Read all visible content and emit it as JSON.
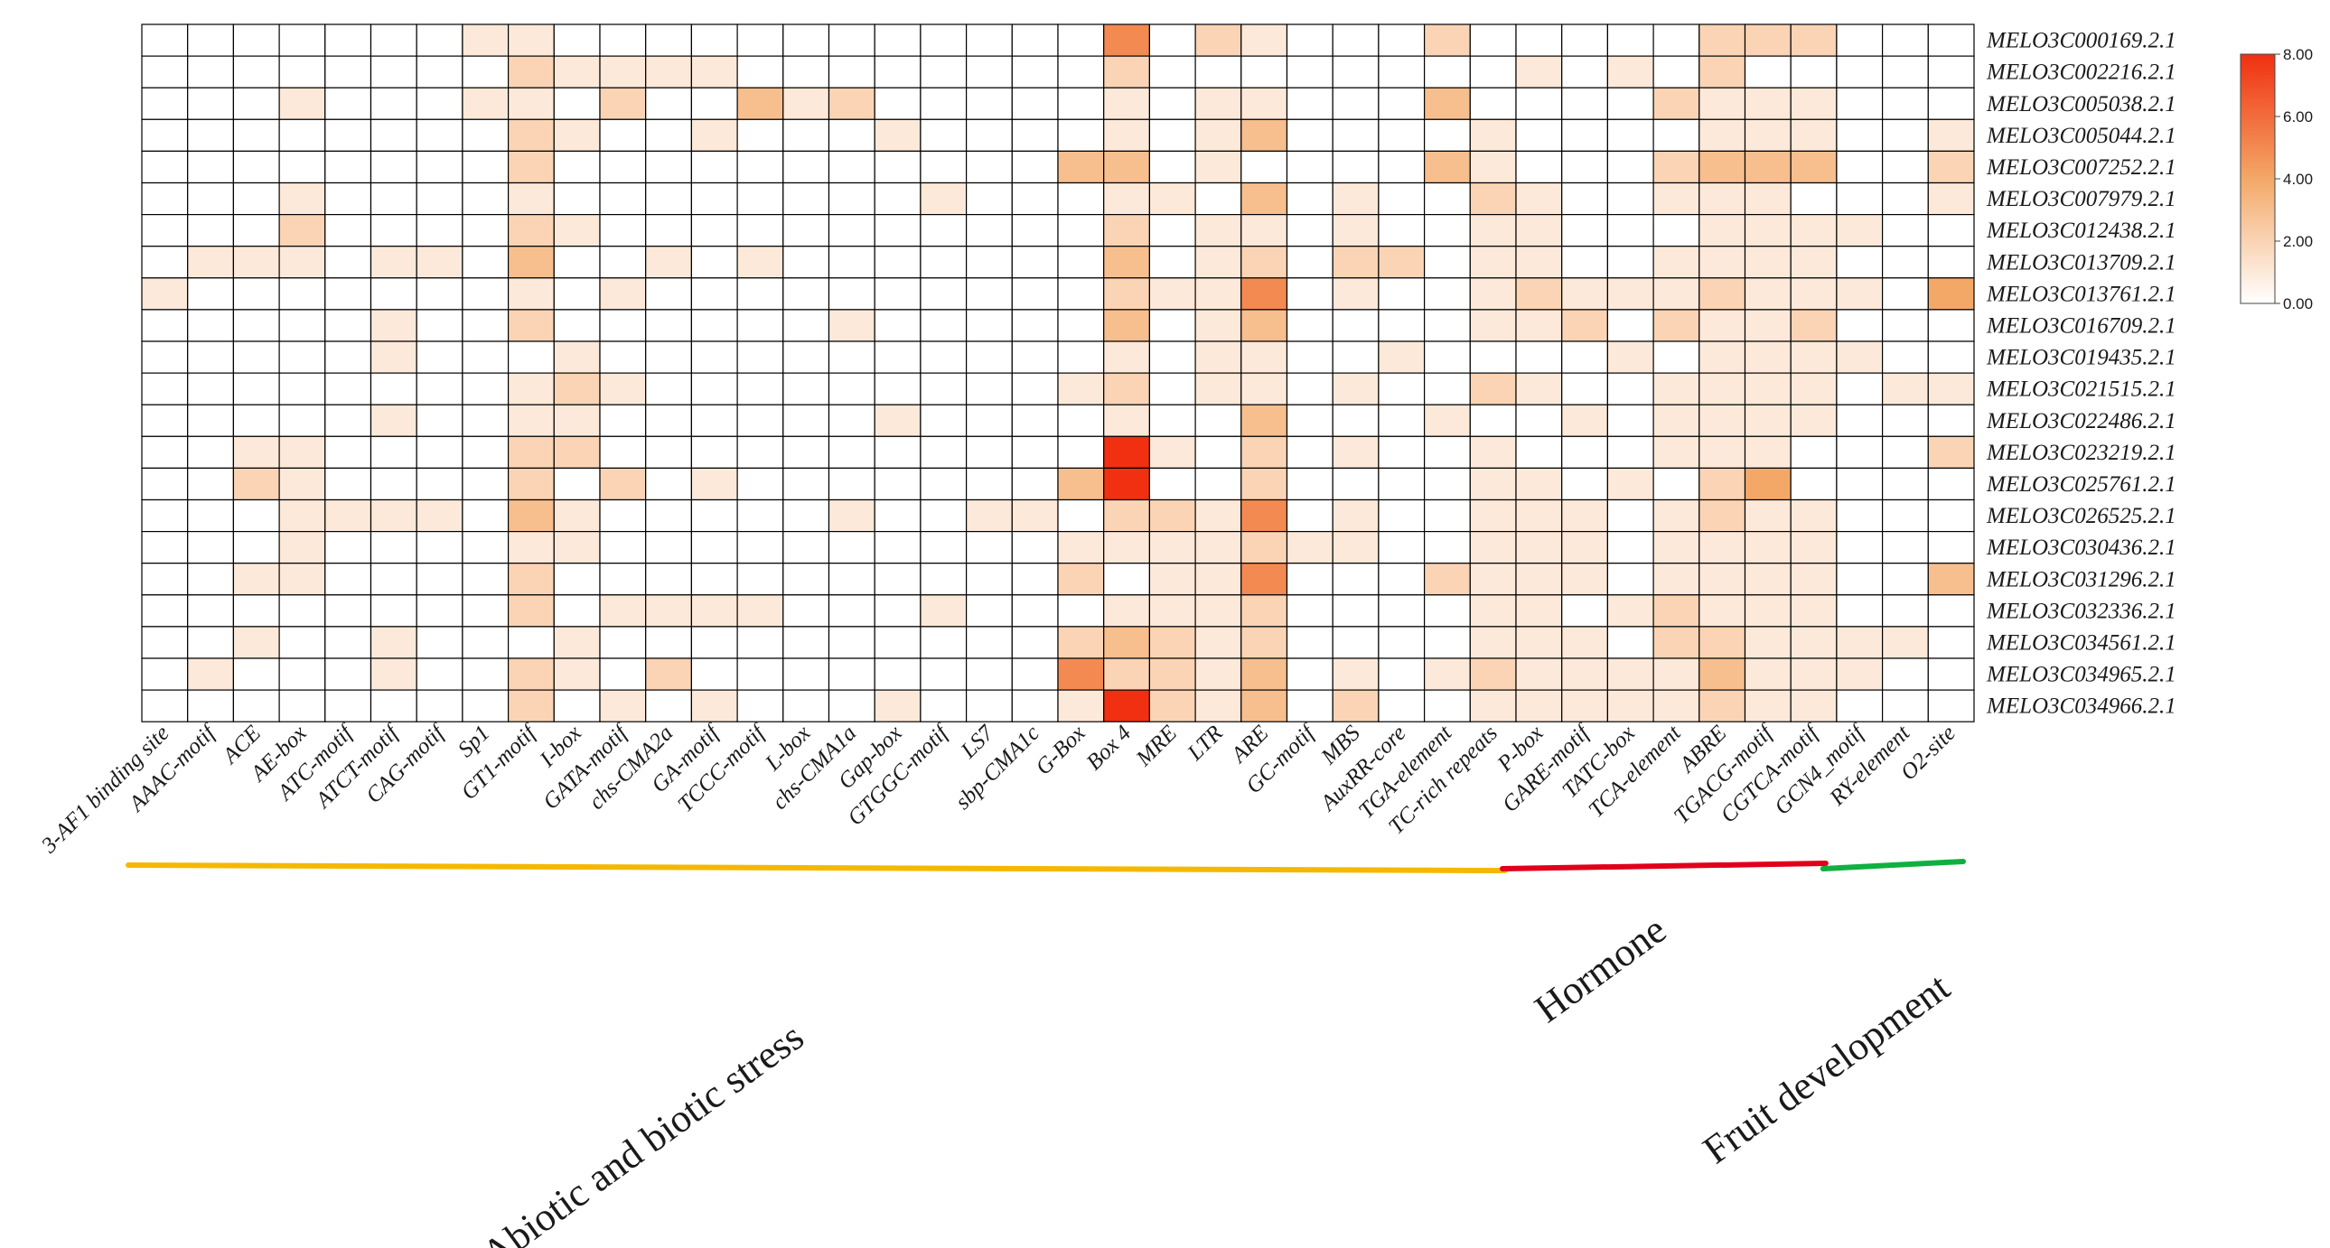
{
  "chart_data": {
    "type": "heatmap",
    "title": "",
    "rows": [
      "MELO3C000169.2.1",
      "MELO3C002216.2.1",
      "MELO3C005038.2.1",
      "MELO3C005044.2.1",
      "MELO3C007252.2.1",
      "MELO3C007979.2.1",
      "MELO3C012438.2.1",
      "MELO3C013709.2.1",
      "MELO3C013761.2.1",
      "MELO3C016709.2.1",
      "MELO3C019435.2.1",
      "MELO3C021515.2.1",
      "MELO3C022486.2.1",
      "MELO3C023219.2.1",
      "MELO3C025761.2.1",
      "MELO3C026525.2.1",
      "MELO3C030436.2.1",
      "MELO3C031296.2.1",
      "MELO3C032336.2.1",
      "MELO3C034561.2.1",
      "MELO3C034965.2.1",
      "MELO3C034966.2.1"
    ],
    "columns": [
      "3-AF1 binding site",
      "AAAC-motif",
      "ACE",
      "AE-box",
      "ATC-motif",
      "ATCT-motif",
      "CAG-motif",
      "Sp1",
      "GT1-motif",
      "I-box",
      "GATA-motif",
      "chs-CMA2a",
      "GA-motif",
      "TCCC-motif",
      "L-box",
      "chs-CMA1a",
      "Gap-box",
      "GTGGC-motif",
      "LS7",
      "sbp-CMA1c",
      "G-Box",
      "Box 4",
      "MRE",
      "LTR",
      "ARE",
      "GC-motif",
      "MBS",
      "AuxRR-core",
      "TGA-element",
      "TC-rich repeats",
      "P-box",
      "GARE-motif",
      "TATC-box",
      "TCA-element",
      "ABRE",
      "TGACG-motif",
      "CGTCA-motif",
      "GCN4_motif",
      "RY-element",
      "O2-site"
    ],
    "values": [
      [
        0,
        0,
        0,
        0,
        0,
        0,
        0,
        1,
        1,
        0,
        0,
        0,
        0,
        0,
        0,
        0,
        0,
        0,
        0,
        0,
        0,
        5,
        0,
        2,
        1,
        0,
        0,
        0,
        2,
        0,
        0,
        0,
        0,
        0,
        2,
        2,
        2,
        0,
        0,
        0
      ],
      [
        0,
        0,
        0,
        0,
        0,
        0,
        0,
        0,
        2,
        1,
        1,
        1,
        1,
        0,
        0,
        0,
        0,
        0,
        0,
        0,
        0,
        2,
        0,
        0,
        0,
        0,
        0,
        0,
        0,
        0,
        1,
        0,
        1,
        0,
        2,
        0,
        0,
        0,
        0,
        0
      ],
      [
        0,
        0,
        0,
        1,
        0,
        0,
        0,
        1,
        1,
        0,
        2,
        0,
        0,
        3,
        1,
        2,
        0,
        0,
        0,
        0,
        0,
        1,
        0,
        1,
        1,
        0,
        0,
        0,
        3,
        0,
        0,
        0,
        0,
        2,
        1,
        1,
        1,
        0,
        0,
        0
      ],
      [
        0,
        0,
        0,
        0,
        0,
        0,
        0,
        0,
        2,
        1,
        0,
        0,
        1,
        0,
        0,
        0,
        1,
        0,
        0,
        0,
        0,
        1,
        0,
        1,
        3,
        0,
        0,
        0,
        0,
        1,
        0,
        0,
        0,
        0,
        1,
        1,
        1,
        0,
        0,
        1
      ],
      [
        0,
        0,
        0,
        0,
        0,
        0,
        0,
        0,
        2,
        0,
        0,
        0,
        0,
        0,
        0,
        0,
        0,
        0,
        0,
        0,
        3,
        3,
        0,
        1,
        0,
        0,
        0,
        0,
        3,
        1,
        0,
        0,
        0,
        2,
        3,
        3,
        3,
        0,
        0,
        2
      ],
      [
        0,
        0,
        0,
        1,
        0,
        0,
        0,
        0,
        1,
        0,
        0,
        0,
        0,
        0,
        0,
        0,
        0,
        1,
        0,
        0,
        0,
        1,
        1,
        0,
        3,
        0,
        1,
        0,
        0,
        2,
        1,
        0,
        0,
        1,
        1,
        1,
        0,
        0,
        0,
        1
      ],
      [
        0,
        0,
        0,
        2,
        0,
        0,
        0,
        0,
        2,
        1,
        0,
        0,
        0,
        0,
        0,
        0,
        0,
        0,
        0,
        0,
        0,
        2,
        0,
        1,
        1,
        0,
        1,
        0,
        0,
        1,
        1,
        0,
        0,
        0,
        1,
        1,
        1,
        1,
        0,
        0
      ],
      [
        0,
        1,
        1,
        1,
        0,
        1,
        1,
        0,
        3,
        0,
        0,
        1,
        0,
        1,
        0,
        0,
        0,
        0,
        0,
        0,
        0,
        3,
        0,
        1,
        2,
        0,
        2,
        2,
        0,
        1,
        1,
        0,
        0,
        1,
        1,
        1,
        1,
        0,
        0,
        0
      ],
      [
        1,
        0,
        0,
        0,
        0,
        0,
        0,
        0,
        1,
        0,
        1,
        0,
        0,
        0,
        0,
        0,
        0,
        0,
        0,
        0,
        0,
        2,
        1,
        1,
        5,
        0,
        1,
        0,
        0,
        1,
        2,
        1,
        1,
        1,
        2,
        1,
        1,
        1,
        0,
        4
      ],
      [
        0,
        0,
        0,
        0,
        0,
        1,
        0,
        0,
        2,
        0,
        0,
        0,
        0,
        0,
        0,
        1,
        0,
        0,
        0,
        0,
        0,
        3,
        0,
        1,
        3,
        0,
        0,
        0,
        0,
        1,
        1,
        2,
        0,
        2,
        1,
        1,
        2,
        0,
        0,
        0
      ],
      [
        0,
        0,
        0,
        0,
        0,
        1,
        0,
        0,
        0,
        1,
        0,
        0,
        0,
        0,
        0,
        0,
        0,
        0,
        0,
        0,
        0,
        1,
        0,
        1,
        1,
        0,
        0,
        1,
        0,
        0,
        0,
        0,
        1,
        0,
        1,
        1,
        1,
        1,
        0,
        0
      ],
      [
        0,
        0,
        0,
        0,
        0,
        0,
        0,
        0,
        1,
        2,
        1,
        0,
        0,
        0,
        0,
        0,
        0,
        0,
        0,
        0,
        1,
        2,
        0,
        1,
        1,
        0,
        1,
        0,
        0,
        2,
        1,
        0,
        0,
        1,
        1,
        1,
        1,
        0,
        1,
        1
      ],
      [
        0,
        0,
        0,
        0,
        0,
        1,
        0,
        0,
        1,
        1,
        0,
        0,
        0,
        0,
        0,
        0,
        1,
        0,
        0,
        0,
        0,
        1,
        0,
        0,
        3,
        0,
        0,
        0,
        1,
        0,
        0,
        1,
        0,
        1,
        1,
        1,
        1,
        0,
        0,
        0
      ],
      [
        0,
        0,
        1,
        1,
        0,
        0,
        0,
        0,
        2,
        2,
        0,
        0,
        0,
        0,
        0,
        0,
        0,
        0,
        0,
        0,
        0,
        8,
        1,
        0,
        2,
        0,
        1,
        0,
        0,
        1,
        0,
        0,
        0,
        1,
        1,
        1,
        0,
        0,
        0,
        2
      ],
      [
        0,
        0,
        2,
        1,
        0,
        0,
        0,
        0,
        2,
        0,
        2,
        0,
        1,
        0,
        0,
        0,
        0,
        0,
        0,
        0,
        3,
        8,
        0,
        0,
        2,
        0,
        0,
        0,
        0,
        1,
        1,
        0,
        1,
        0,
        2,
        4,
        0,
        0,
        0,
        0
      ],
      [
        0,
        0,
        0,
        1,
        1,
        1,
        1,
        0,
        3,
        1,
        0,
        0,
        0,
        0,
        0,
        1,
        0,
        0,
        1,
        1,
        0,
        2,
        2,
        1,
        5,
        0,
        1,
        0,
        0,
        1,
        1,
        1,
        0,
        1,
        2,
        1,
        1,
        0,
        0,
        0
      ],
      [
        0,
        0,
        0,
        1,
        0,
        0,
        0,
        0,
        1,
        1,
        0,
        0,
        0,
        0,
        0,
        0,
        0,
        0,
        0,
        0,
        1,
        1,
        1,
        1,
        2,
        1,
        1,
        0,
        0,
        1,
        1,
        1,
        0,
        1,
        1,
        1,
        1,
        0,
        0,
        0
      ],
      [
        0,
        0,
        1,
        1,
        0,
        0,
        0,
        0,
        2,
        0,
        0,
        0,
        0,
        0,
        0,
        0,
        0,
        0,
        0,
        0,
        2,
        0,
        1,
        1,
        5,
        0,
        0,
        0,
        2,
        1,
        1,
        1,
        0,
        1,
        1,
        1,
        1,
        0,
        0,
        3
      ],
      [
        0,
        0,
        0,
        0,
        0,
        0,
        0,
        0,
        2,
        0,
        1,
        1,
        1,
        1,
        0,
        0,
        0,
        1,
        0,
        0,
        0,
        1,
        1,
        1,
        2,
        0,
        0,
        0,
        0,
        1,
        1,
        0,
        1,
        2,
        1,
        1,
        1,
        0,
        0,
        0
      ],
      [
        0,
        0,
        1,
        0,
        0,
        1,
        0,
        0,
        0,
        1,
        0,
        0,
        0,
        0,
        0,
        0,
        0,
        0,
        0,
        0,
        2,
        3,
        2,
        1,
        2,
        0,
        0,
        0,
        0,
        1,
        1,
        1,
        0,
        2,
        2,
        1,
        1,
        1,
        1,
        0
      ],
      [
        0,
        1,
        0,
        0,
        0,
        1,
        0,
        0,
        2,
        1,
        0,
        2,
        0,
        0,
        0,
        0,
        0,
        0,
        0,
        0,
        5,
        2,
        2,
        1,
        3,
        0,
        1,
        0,
        1,
        2,
        1,
        1,
        1,
        1,
        3,
        1,
        1,
        1,
        0,
        0
      ],
      [
        0,
        0,
        0,
        0,
        0,
        0,
        0,
        0,
        2,
        0,
        1,
        0,
        1,
        0,
        0,
        0,
        1,
        0,
        0,
        0,
        1,
        8,
        2,
        1,
        3,
        0,
        2,
        0,
        0,
        1,
        1,
        1,
        1,
        1,
        2,
        1,
        1,
        0,
        0,
        0
      ]
    ],
    "colorbar": {
      "min": 0,
      "max": 8,
      "tick_labels": [
        "8.00",
        "6.00",
        "4.00",
        "2.00",
        "0.00"
      ],
      "colors": [
        "#ffffff",
        "#f4a868",
        "#f03010"
      ]
    },
    "groups": [
      {
        "label": "Abiotic and biotic stress",
        "color": "#f5b800",
        "first_column": 0,
        "last_column": 29
      },
      {
        "label": "Hormone",
        "color": "#e0001b",
        "first_column": 30,
        "last_column": 36
      },
      {
        "label": "Fruit development",
        "color": "#10b040",
        "first_column": 37,
        "last_column": 39
      }
    ]
  }
}
